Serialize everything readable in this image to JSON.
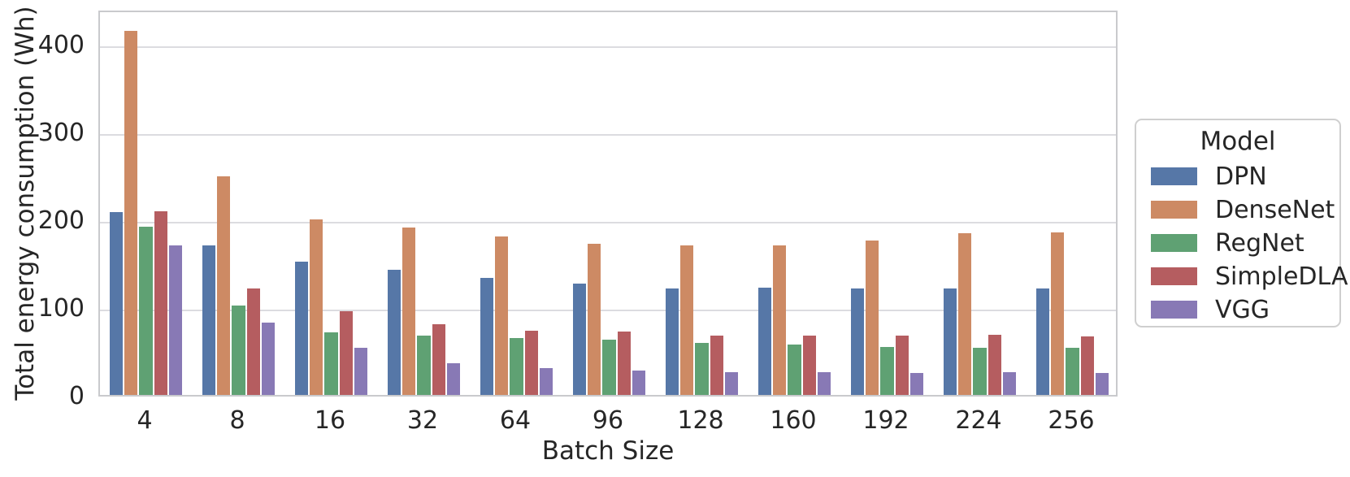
{
  "chart_data": {
    "type": "bar",
    "title": "",
    "xlabel": "Batch Size",
    "ylabel": "Total energy consumption (Wh)",
    "categories": [
      "4",
      "8",
      "16",
      "32",
      "64",
      "96",
      "128",
      "160",
      "192",
      "224",
      "256"
    ],
    "series": [
      {
        "name": "DPN",
        "color": "#5677a7",
        "values": [
          208,
          170,
          152,
          143,
          133,
          127,
          121,
          122,
          121,
          121,
          121
        ]
      },
      {
        "name": "DenseNet",
        "color": "#cd8a64",
        "values": [
          415,
          249,
          200,
          191,
          181,
          172,
          170,
          170,
          176,
          184,
          185
        ]
      },
      {
        "name": "RegNet",
        "color": "#5fa173",
        "values": [
          192,
          102,
          71,
          68,
          65,
          63,
          59,
          57,
          55,
          54,
          54
        ]
      },
      {
        "name": "SimpleDLA",
        "color": "#b55d60",
        "values": [
          209,
          121,
          95,
          81,
          73,
          72,
          68,
          68,
          68,
          69,
          67
        ]
      },
      {
        "name": "VGG",
        "color": "#8879b5",
        "values": [
          170,
          82,
          54,
          36,
          31,
          28,
          26,
          26,
          25,
          26,
          25
        ]
      }
    ],
    "yticks": [
      0,
      100,
      200,
      300,
      400
    ],
    "ylim": [
      0,
      440
    ],
    "grid": true,
    "legend": {
      "title": "Model",
      "position": "right"
    }
  },
  "colors": {
    "text": "#262626",
    "grid": "#dcdce0",
    "spine": "#c9cacd",
    "legend_border": "#cfcfcf",
    "background": "#ffffff"
  }
}
